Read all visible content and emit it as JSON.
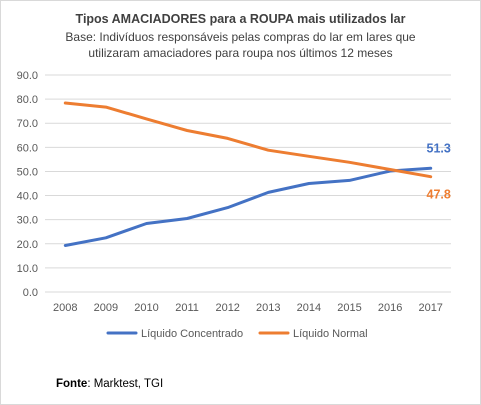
{
  "chart_data": {
    "type": "line",
    "title": "Tipos AMACIADORES para a ROUPA mais utilizados lar",
    "subtitle_lines": [
      "Base: Indivíduos responsáveis pelas compras do lar em lares que",
      "utilizaram amaciadores para roupa nos últimos 12 meses"
    ],
    "x": [
      "2008",
      "2009",
      "2010",
      "2011",
      "2012",
      "2013",
      "2014",
      "2015",
      "2016",
      "2017"
    ],
    "ylim": [
      0,
      90
    ],
    "yticks": [
      "0.0",
      "10.0",
      "20.0",
      "30.0",
      "40.0",
      "50.0",
      "60.0",
      "70.0",
      "80.0",
      "90.0"
    ],
    "grid": true,
    "legend": "bottom",
    "series": [
      {
        "name": "Líquido Concentrado",
        "color": "#4472c4",
        "values": [
          19.3,
          22.5,
          28.4,
          30.5,
          35.0,
          41.3,
          45.0,
          46.3,
          50.2,
          51.3
        ],
        "end_label": "51.3"
      },
      {
        "name": "Líquido Normal",
        "color": "#ed7d31",
        "values": [
          78.4,
          76.7,
          71.8,
          67.0,
          63.7,
          58.8,
          56.3,
          53.8,
          50.8,
          47.8
        ],
        "end_label": "47.8"
      }
    ]
  },
  "source": {
    "label": "Fonte",
    "text": ": Marktest, TGI"
  }
}
